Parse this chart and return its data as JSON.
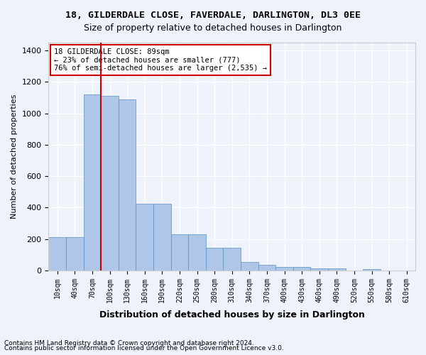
{
  "title1": "18, GILDERDALE CLOSE, FAVERDALE, DARLINGTON, DL3 0EE",
  "title2": "Size of property relative to detached houses in Darlington",
  "xlabel": "Distribution of detached houses by size in Darlington",
  "ylabel": "Number of detached properties",
  "footnote1": "Contains HM Land Registry data © Crown copyright and database right 2024.",
  "footnote2": "Contains public sector information licensed under the Open Government Licence v3.0.",
  "annotation_line1": "18 GILDERDALE CLOSE: 89sqm",
  "annotation_line2": "← 23% of detached houses are smaller (777)",
  "annotation_line3": "76% of semi-detached houses are larger (2,535) →",
  "bar_color": "#aec6e8",
  "bar_edge_color": "#5a8fc0",
  "vline_color": "#cc0000",
  "annotation_edge_color": "#cc0000",
  "bar_categories": [
    "10sqm",
    "40sqm",
    "70sqm",
    "100sqm",
    "130sqm",
    "160sqm",
    "190sqm",
    "220sqm",
    "250sqm",
    "280sqm",
    "310sqm",
    "340sqm",
    "370sqm",
    "400sqm",
    "430sqm",
    "460sqm",
    "490sqm",
    "520sqm",
    "550sqm",
    "580sqm",
    "610sqm"
  ],
  "bar_values": [
    210,
    210,
    1120,
    1110,
    1090,
    425,
    425,
    230,
    230,
    145,
    145,
    55,
    38,
    22,
    22,
    14,
    14,
    0,
    10,
    0,
    0
  ],
  "ylim": [
    0,
    1450
  ],
  "vline_x": 2.5,
  "background_color": "#eef2fa",
  "grid_color": "#ffffff"
}
